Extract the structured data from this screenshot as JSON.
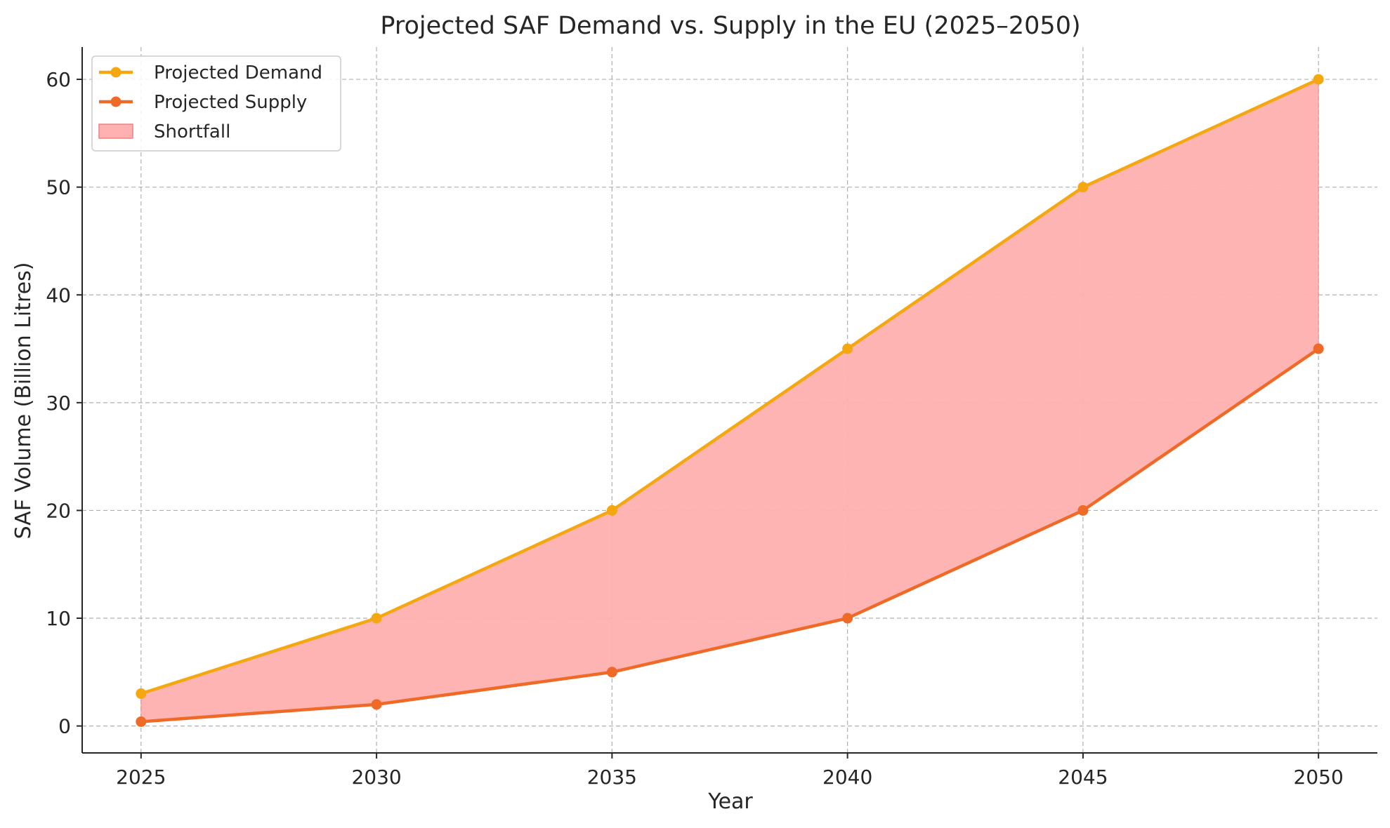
{
  "chart_data": {
    "type": "line",
    "title": "Projected SAF Demand vs. Supply in the EU (2025–2050)",
    "xlabel": "Year",
    "ylabel": "SAF Volume (Billion Litres)",
    "x": [
      2025,
      2030,
      2035,
      2040,
      2045,
      2050
    ],
    "xlim": [
      2023.75,
      2051.25
    ],
    "ylim": [
      -2.5,
      63
    ],
    "xticks": [
      2025,
      2030,
      2035,
      2040,
      2045,
      2050
    ],
    "yticks": [
      0,
      10,
      20,
      30,
      40,
      50,
      60
    ],
    "grid": true,
    "legend_position": "top-left",
    "series": [
      {
        "name": "Projected Demand",
        "values": [
          3,
          10,
          20,
          35,
          50,
          60
        ],
        "color": "#f5a70f",
        "marker": "circle"
      },
      {
        "name": "Projected Supply",
        "values": [
          0.4,
          2,
          5,
          10,
          20,
          35
        ],
        "color": "#f06a27",
        "marker": "circle"
      }
    ],
    "fill_between": {
      "name": "Shortfall",
      "upper": "Projected Demand",
      "lower": "Projected Supply",
      "color": "#ffb0b0",
      "edge_color": "#f08080"
    }
  }
}
